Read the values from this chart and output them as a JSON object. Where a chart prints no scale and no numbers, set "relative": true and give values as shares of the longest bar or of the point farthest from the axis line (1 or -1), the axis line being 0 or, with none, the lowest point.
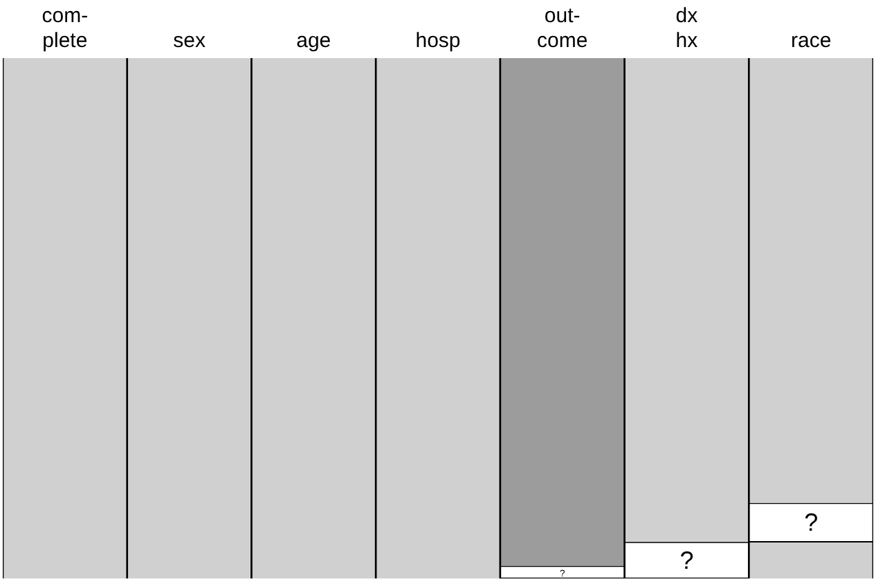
{
  "chart_data": {
    "type": "bar",
    "relative": true,
    "stacked": true,
    "legend": false,
    "grid": false,
    "categories": [
      "com-\nplete",
      "sex",
      "age",
      "hosp",
      "out-\ncome",
      "dx\nhx",
      "race"
    ],
    "series": [
      {
        "colors": [
          "#d0d0d0",
          "#d0d0d0",
          "#d0d0d0",
          "#d0d0d0",
          "#9c9c9c",
          "#d0d0d0",
          "#d0d0d0"
        ],
        "values": [
          1,
          1,
          1,
          1,
          0.976,
          0.93,
          0.855
        ]
      },
      {
        "color": "#ffffff",
        "values": [
          0,
          0,
          0,
          0,
          0.024,
          0.07,
          0.075
        ]
      },
      {
        "color": "#d0d0d0",
        "values": [
          0,
          0,
          0,
          0,
          0,
          0,
          0.07
        ]
      }
    ],
    "annotations": [
      "?",
      "?",
      "?"
    ]
  }
}
